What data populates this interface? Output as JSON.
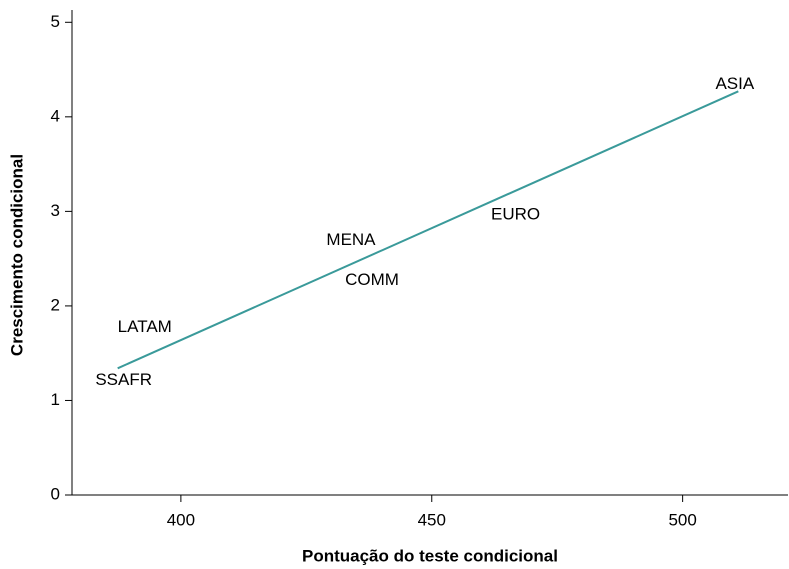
{
  "chart_data": {
    "type": "scatter",
    "xlabel": "Pontuação do teste condicional",
    "ylabel": "Crescimento condicional",
    "points": [
      {
        "label": "SSAFR",
        "x": 388.6,
        "y": 1.21
      },
      {
        "label": "LATAM",
        "x": 392.8,
        "y": 1.77
      },
      {
        "label": "MENA",
        "x": 433.9,
        "y": 2.69
      },
      {
        "label": "COMM",
        "x": 438.1,
        "y": 2.27
      },
      {
        "label": "EURO",
        "x": 466.7,
        "y": 2.96
      },
      {
        "label": "ASIA",
        "x": 510.4,
        "y": 4.34
      }
    ],
    "fit": {
      "x": [
        387.4,
        511.1
      ],
      "values": [
        1.34,
        4.27
      ],
      "color": "#3a9a9a"
    },
    "xlim": [
      378.3,
      521
    ],
    "xticks": [
      400,
      450,
      500
    ],
    "ylim": [
      0,
      5.13
    ],
    "yticks": [
      0,
      1,
      2,
      3,
      4,
      5
    ],
    "grid": false
  }
}
